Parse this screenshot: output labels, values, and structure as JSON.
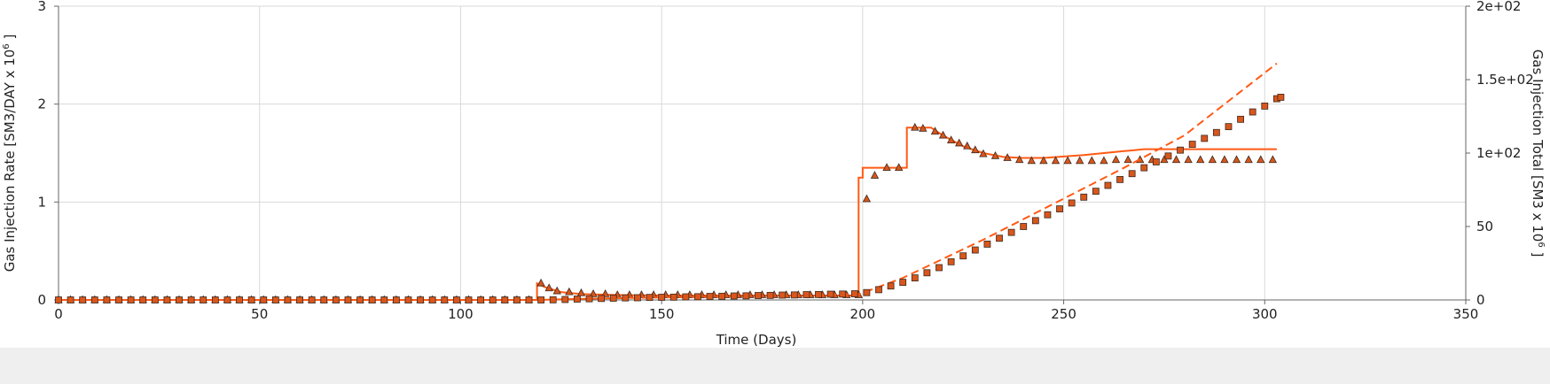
{
  "chart_data": {
    "type": "line",
    "xlabel": "Time (Days)",
    "ylabel_left": "Gas Injection Rate [SM3/DAY x 10",
    "ylabel_left_sup": "6",
    "ylabel_left_end": " ]",
    "ylabel_right": "Gas Injection Total [SM3 x 10",
    "ylabel_right_sup": "6",
    "ylabel_right_end": " ]",
    "xlim": [
      0,
      350
    ],
    "ylim_left": [
      0,
      3
    ],
    "ylim_right": [
      0,
      200
    ],
    "x_ticks": [
      0,
      50,
      100,
      150,
      200,
      250,
      300,
      350
    ],
    "x_tick_labels": [
      "0",
      "50",
      "100",
      "150",
      "200",
      "250",
      "300",
      "350"
    ],
    "y_left_ticks": [
      0,
      1,
      2,
      3
    ],
    "y_left_tick_labels": [
      "0",
      "1",
      "2",
      "3"
    ],
    "y_right_ticks": [
      0,
      50,
      100,
      150,
      200
    ],
    "y_right_tick_labels": [
      "0",
      "50",
      "1e+02",
      "1.5e+02",
      "2e+02"
    ],
    "grid": true,
    "colors": {
      "line": "#ff5a14",
      "marker_fill": "#d9561c",
      "marker_edge": "#3a2a20"
    },
    "series": [
      {
        "style": "solid-line",
        "axis": "left",
        "points": [
          [
            0,
            0
          ],
          [
            119,
            0
          ],
          [
            119,
            0.17
          ],
          [
            121,
            0.13
          ],
          [
            125,
            0.08
          ],
          [
            130,
            0.06
          ],
          [
            140,
            0.05
          ],
          [
            150,
            0.045
          ],
          [
            170,
            0.045
          ],
          [
            199,
            0.045
          ],
          [
            199,
            1.25
          ],
          [
            200,
            1.25
          ],
          [
            200,
            1.35
          ],
          [
            211,
            1.35
          ],
          [
            211,
            1.76
          ],
          [
            217,
            1.76
          ],
          [
            220,
            1.68
          ],
          [
            225,
            1.57
          ],
          [
            230,
            1.5
          ],
          [
            235,
            1.46
          ],
          [
            240,
            1.45
          ],
          [
            245,
            1.45
          ],
          [
            255,
            1.48
          ],
          [
            265,
            1.52
          ],
          [
            270,
            1.54
          ],
          [
            303,
            1.54
          ]
        ]
      },
      {
        "style": "triangle-markers",
        "axis": "left",
        "points": [
          [
            0,
            0
          ],
          [
            3,
            0
          ],
          [
            6,
            0
          ],
          [
            9,
            0
          ],
          [
            12,
            0
          ],
          [
            15,
            0
          ],
          [
            18,
            0
          ],
          [
            21,
            0
          ],
          [
            24,
            0
          ],
          [
            27,
            0
          ],
          [
            30,
            0
          ],
          [
            33,
            0
          ],
          [
            36,
            0
          ],
          [
            39,
            0
          ],
          [
            42,
            0
          ],
          [
            45,
            0
          ],
          [
            48,
            0
          ],
          [
            51,
            0
          ],
          [
            54,
            0
          ],
          [
            57,
            0
          ],
          [
            60,
            0
          ],
          [
            63,
            0
          ],
          [
            66,
            0
          ],
          [
            69,
            0
          ],
          [
            72,
            0
          ],
          [
            75,
            0
          ],
          [
            78,
            0
          ],
          [
            81,
            0
          ],
          [
            84,
            0
          ],
          [
            87,
            0
          ],
          [
            90,
            0
          ],
          [
            93,
            0
          ],
          [
            96,
            0
          ],
          [
            99,
            0
          ],
          [
            102,
            0
          ],
          [
            105,
            0
          ],
          [
            108,
            0
          ],
          [
            111,
            0
          ],
          [
            114,
            0
          ],
          [
            117,
            0
          ],
          [
            120,
            0.17
          ],
          [
            122,
            0.12
          ],
          [
            124,
            0.09
          ],
          [
            127,
            0.08
          ],
          [
            130,
            0.07
          ],
          [
            133,
            0.06
          ],
          [
            136,
            0.06
          ],
          [
            139,
            0.05
          ],
          [
            142,
            0.05
          ],
          [
            145,
            0.05
          ],
          [
            148,
            0.05
          ],
          [
            151,
            0.05
          ],
          [
            154,
            0.05
          ],
          [
            157,
            0.05
          ],
          [
            160,
            0.05
          ],
          [
            163,
            0.05
          ],
          [
            166,
            0.05
          ],
          [
            169,
            0.05
          ],
          [
            172,
            0.05
          ],
          [
            175,
            0.05
          ],
          [
            178,
            0.05
          ],
          [
            181,
            0.05
          ],
          [
            184,
            0.05
          ],
          [
            187,
            0.05
          ],
          [
            190,
            0.05
          ],
          [
            193,
            0.05
          ],
          [
            196,
            0.05
          ],
          [
            199,
            0.05
          ],
          [
            201,
            1.03
          ],
          [
            203,
            1.27
          ],
          [
            206,
            1.35
          ],
          [
            209,
            1.35
          ],
          [
            213,
            1.76
          ],
          [
            215,
            1.75
          ],
          [
            218,
            1.72
          ],
          [
            220,
            1.68
          ],
          [
            222,
            1.63
          ],
          [
            224,
            1.6
          ],
          [
            226,
            1.57
          ],
          [
            228,
            1.53
          ],
          [
            230,
            1.49
          ],
          [
            233,
            1.47
          ],
          [
            236,
            1.45
          ],
          [
            239,
            1.43
          ],
          [
            242,
            1.42
          ],
          [
            245,
            1.42
          ],
          [
            248,
            1.42
          ],
          [
            251,
            1.42
          ],
          [
            254,
            1.42
          ],
          [
            257,
            1.42
          ],
          [
            260,
            1.42
          ],
          [
            263,
            1.43
          ],
          [
            266,
            1.43
          ],
          [
            269,
            1.43
          ],
          [
            272,
            1.43
          ],
          [
            275,
            1.43
          ],
          [
            278,
            1.43
          ],
          [
            281,
            1.43
          ],
          [
            284,
            1.43
          ],
          [
            287,
            1.43
          ],
          [
            290,
            1.43
          ],
          [
            293,
            1.43
          ],
          [
            296,
            1.43
          ],
          [
            299,
            1.43
          ],
          [
            302,
            1.43
          ]
        ]
      },
      {
        "style": "dashed-line",
        "axis": "right",
        "points": [
          [
            0,
            0
          ],
          [
            119,
            0
          ],
          [
            130,
            0.8
          ],
          [
            150,
            1.7
          ],
          [
            199,
            3.8
          ],
          [
            210,
            15
          ],
          [
            230,
            41
          ],
          [
            250,
            69
          ],
          [
            265,
            90
          ],
          [
            280,
            112
          ],
          [
            303,
            161
          ]
        ]
      },
      {
        "style": "square-markers",
        "axis": "right",
        "points": [
          [
            0,
            0
          ],
          [
            3,
            0
          ],
          [
            6,
            0
          ],
          [
            9,
            0
          ],
          [
            12,
            0
          ],
          [
            15,
            0
          ],
          [
            18,
            0
          ],
          [
            21,
            0
          ],
          [
            24,
            0
          ],
          [
            27,
            0
          ],
          [
            30,
            0
          ],
          [
            33,
            0
          ],
          [
            36,
            0
          ],
          [
            39,
            0
          ],
          [
            42,
            0
          ],
          [
            45,
            0
          ],
          [
            48,
            0
          ],
          [
            51,
            0
          ],
          [
            54,
            0
          ],
          [
            57,
            0
          ],
          [
            60,
            0
          ],
          [
            63,
            0
          ],
          [
            66,
            0
          ],
          [
            69,
            0
          ],
          [
            72,
            0
          ],
          [
            75,
            0
          ],
          [
            78,
            0
          ],
          [
            81,
            0
          ],
          [
            84,
            0
          ],
          [
            87,
            0
          ],
          [
            90,
            0
          ],
          [
            93,
            0
          ],
          [
            96,
            0
          ],
          [
            99,
            0
          ],
          [
            102,
            0
          ],
          [
            105,
            0
          ],
          [
            108,
            0
          ],
          [
            111,
            0
          ],
          [
            114,
            0
          ],
          [
            117,
            0
          ],
          [
            120,
            0
          ],
          [
            123,
            0.1
          ],
          [
            126,
            0.3
          ],
          [
            129,
            0.6
          ],
          [
            132,
            0.8
          ],
          [
            135,
            1
          ],
          [
            138,
            1.2
          ],
          [
            141,
            1.4
          ],
          [
            144,
            1.5
          ],
          [
            147,
            1.7
          ],
          [
            150,
            1.8
          ],
          [
            153,
            1.9
          ],
          [
            156,
            2.1
          ],
          [
            159,
            2.2
          ],
          [
            162,
            2.4
          ],
          [
            165,
            2.5
          ],
          [
            168,
            2.7
          ],
          [
            171,
            2.8
          ],
          [
            174,
            3
          ],
          [
            177,
            3.1
          ],
          [
            180,
            3.3
          ],
          [
            183,
            3.4
          ],
          [
            186,
            3.6
          ],
          [
            189,
            3.7
          ],
          [
            192,
            3.9
          ],
          [
            195,
            4
          ],
          [
            198,
            4.2
          ],
          [
            201,
            5
          ],
          [
            204,
            7
          ],
          [
            207,
            9.5
          ],
          [
            210,
            12
          ],
          [
            213,
            15
          ],
          [
            216,
            18.5
          ],
          [
            219,
            22
          ],
          [
            222,
            26
          ],
          [
            225,
            30
          ],
          [
            228,
            34
          ],
          [
            231,
            38
          ],
          [
            234,
            42
          ],
          [
            237,
            46
          ],
          [
            240,
            50
          ],
          [
            243,
            54
          ],
          [
            246,
            58
          ],
          [
            249,
            62
          ],
          [
            252,
            66
          ],
          [
            255,
            70
          ],
          [
            258,
            74
          ],
          [
            261,
            78
          ],
          [
            264,
            82
          ],
          [
            267,
            86
          ],
          [
            270,
            90
          ],
          [
            273,
            94
          ],
          [
            276,
            98
          ],
          [
            279,
            102
          ],
          [
            282,
            106
          ],
          [
            285,
            110
          ],
          [
            288,
            114
          ],
          [
            291,
            118
          ],
          [
            294,
            123
          ],
          [
            297,
            128
          ],
          [
            300,
            132
          ],
          [
            303,
            137
          ],
          [
            304,
            138
          ]
        ]
      }
    ]
  }
}
